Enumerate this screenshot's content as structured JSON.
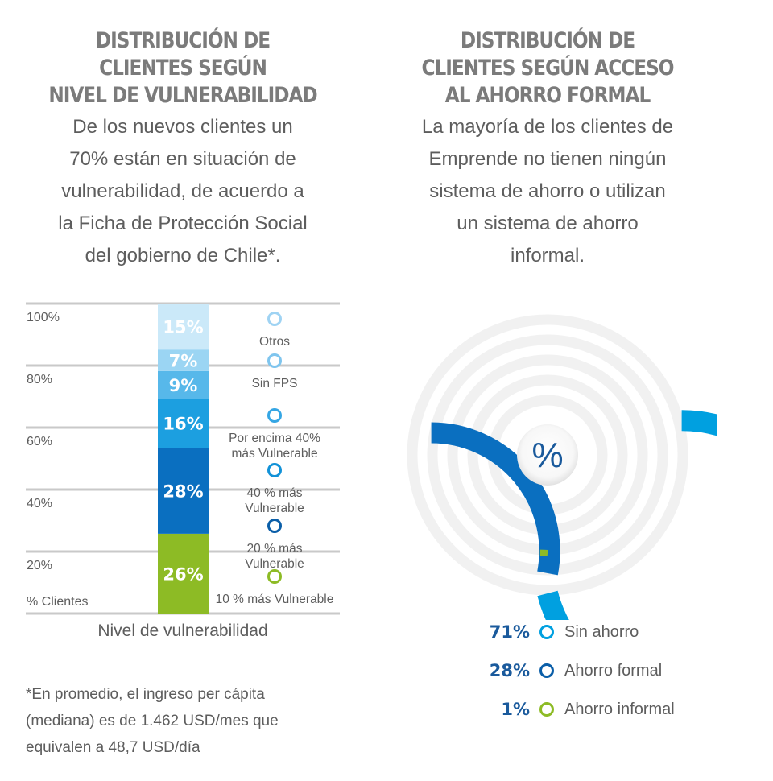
{
  "left_panel": {
    "title_lines": [
      "DISTRIBUCIÓN DE",
      "CLIENTES SEGÚN",
      "NIVEL DE VULNERABILIDAD"
    ],
    "description_lines": [
      "De los nuevos clientes un",
      "70% están en situación de",
      "vulnerabilidad, de acuerdo a",
      "la Ficha de Protección Social",
      "del gobierno de Chile*."
    ],
    "footnote_lines": [
      "*En promedio, el ingreso per cápita",
      "(mediana) es de 1.462 USD/mes que",
      "equivalen a 48,7 USD/día"
    ]
  },
  "right_panel": {
    "title_lines": [
      "DISTRIBUCIÓN DE",
      "CLIENTES SEGÚN ACCESO",
      "AL AHORRO FORMAL"
    ],
    "description_lines": [
      "La mayoría de los clientes de",
      "Emprende no tienen ningún",
      "sistema de ahorro o utilizan",
      "un sistema de ahorro",
      "informal."
    ]
  },
  "chart_data": [
    {
      "type": "bar",
      "stacked": true,
      "xlabel": "Nivel de vulnerabilidad",
      "ylabel": "% Clientes",
      "ylim": [
        0,
        100
      ],
      "yticks": [
        "20%",
        "40%",
        "60%",
        "80%",
        "100%"
      ],
      "grid": true,
      "segments": [
        {
          "name": "10 % más Vulnerable",
          "value": 26,
          "label": "26%",
          "color": "#8dbb25"
        },
        {
          "name": "20 % más Vulnerable",
          "value": 28,
          "label": "28%",
          "color": "#0a6fc0"
        },
        {
          "name": "40 % más Vulnerable",
          "value": 16,
          "label": "16%",
          "color": "#1c9fe0"
        },
        {
          "name": "Por encima 40% más Vulnerable",
          "value": 9,
          "label": "9%",
          "color": "#57b8ea"
        },
        {
          "name": "Sin FPS",
          "value": 7,
          "label": "7%",
          "color": "#9bd5f3"
        },
        {
          "name": "Otros",
          "value": 15,
          "label": "15%",
          "color": "#cbe9f9"
        }
      ],
      "legend": [
        {
          "name": "Otros",
          "color": "#9fd3f3"
        },
        {
          "name": "Sin FPS",
          "color": "#7fc5ee"
        },
        {
          "name": "Por encima 40% más Vulnerable",
          "lines": [
            "Por encima 40%",
            "más Vulnerable"
          ],
          "color": "#35a6e4"
        },
        {
          "name": "40 % más Vulnerable",
          "lines": [
            "40 % más",
            "Vulnerable"
          ],
          "color": "#1292d8"
        },
        {
          "name": "20 % más Vulnerable",
          "lines": [
            "20 % más",
            "Vulnerable"
          ],
          "color": "#0a5ea8"
        },
        {
          "name": "10 % más Vulnerable",
          "lines": [
            "10 % más Vulnerable"
          ],
          "color": "#8dbb25"
        }
      ]
    },
    {
      "type": "pie",
      "variant": "radial-rings",
      "center_label": "%",
      "slices": [
        {
          "name": "Sin ahorro",
          "value": 71,
          "label": "71%",
          "color": "#00a0e0"
        },
        {
          "name": "Ahorro formal",
          "value": 28,
          "label": "28%",
          "color": "#0a6fc0"
        },
        {
          "name": "Ahorro informal",
          "value": 1,
          "label": "1%",
          "color": "#8dbb25"
        }
      ]
    }
  ]
}
